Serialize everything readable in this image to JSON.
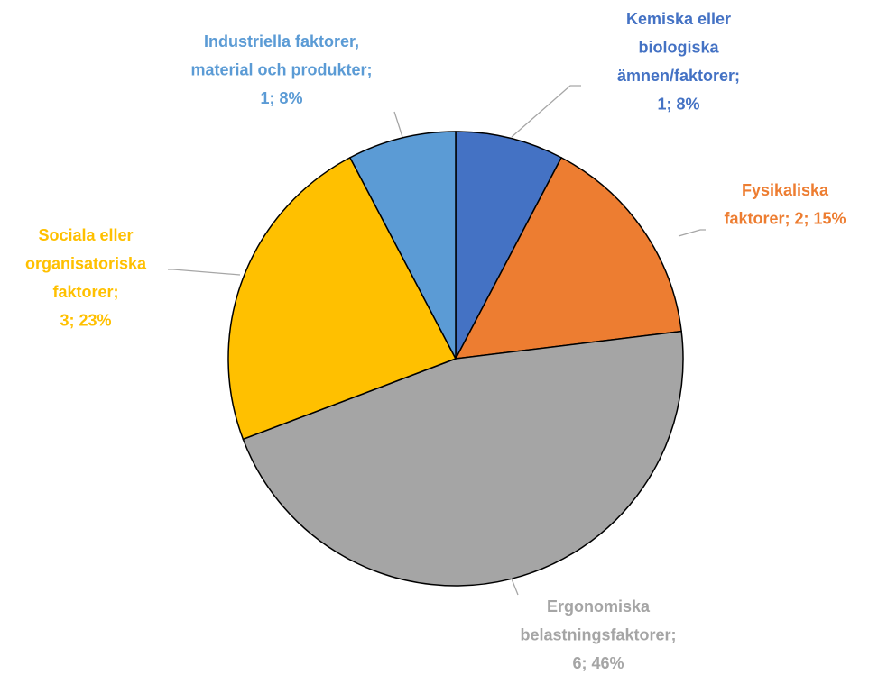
{
  "chart_data": {
    "type": "pie",
    "labels": [
      "Kemiska eller biologiska ämnen/faktorer; 1; 8%",
      "Fysikaliska faktorer; 2; 15%",
      "Ergonomiska belastningsfaktorer; 6; 46%",
      "Sociala eller organisatoriska faktorer; 3; 23%",
      "Industriella faktorer, material och produkter; 1; 8%"
    ],
    "values": [
      1,
      2,
      6,
      3,
      1
    ],
    "colors": [
      "#4472c4",
      "#ed7d31",
      "#a5a5a5",
      "#ffc000",
      "#5b9bd5"
    ]
  }
}
